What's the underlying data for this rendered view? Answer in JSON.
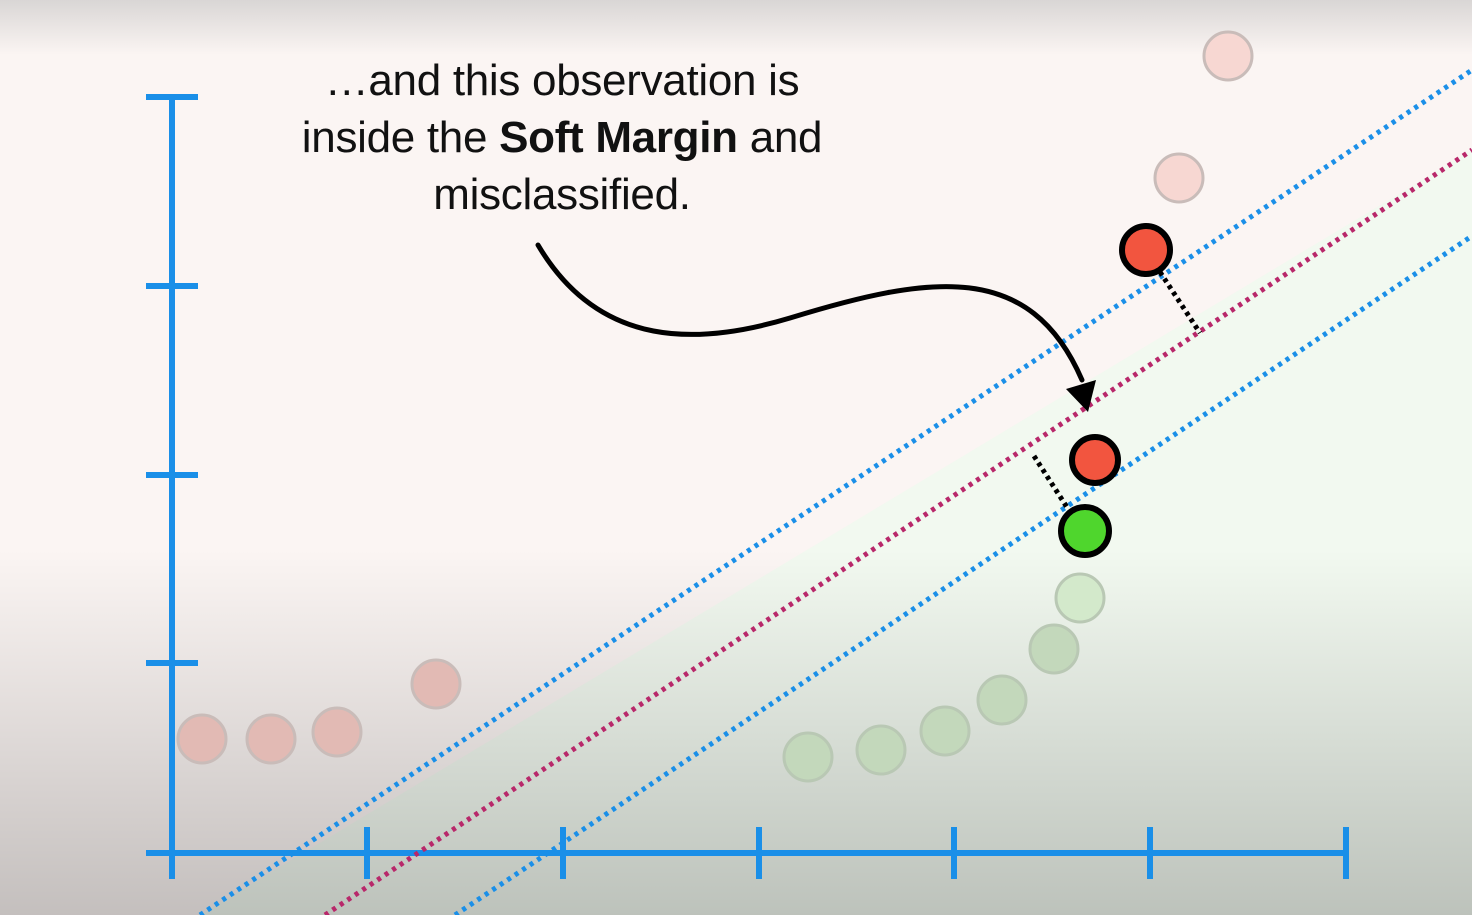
{
  "caption": {
    "line1": "…and this observation is",
    "line2_pre": "inside the ",
    "line2_bold": "Soft Margin",
    "line2_post": " and",
    "line3": "misclassified."
  },
  "colors": {
    "axis": "#1a8fe8",
    "margin_line": "#1a8fe8",
    "hyperplane": "#b8286a",
    "red_point": "#f2553f",
    "green_point": "#4fd62d",
    "faded_red": "#e6bcb6",
    "faded_green": "#c4dcbc",
    "arrow": "#000000"
  }
}
